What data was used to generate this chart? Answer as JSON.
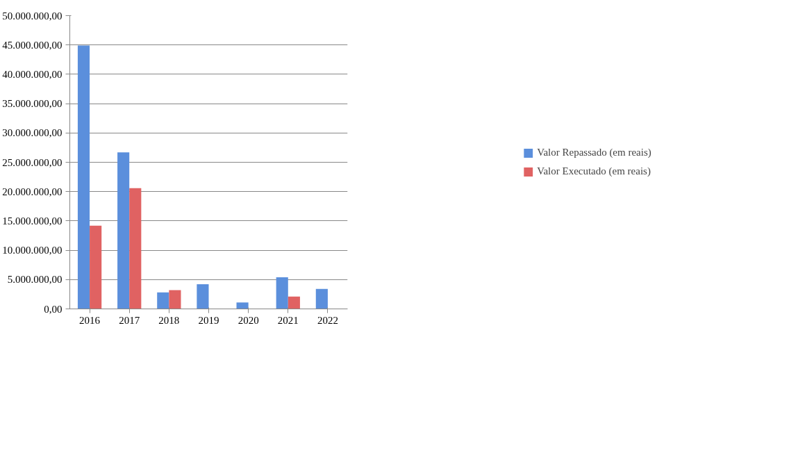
{
  "chart_data": {
    "type": "bar",
    "categories": [
      "2016",
      "2017",
      "2018",
      "2019",
      "2020",
      "2021",
      "2022"
    ],
    "series": [
      {
        "name": "Valor Repassado (em reais)",
        "color": "#5b8fdc",
        "values": [
          44900000,
          26700000,
          2800000,
          4200000,
          1100000,
          5400000,
          3400000
        ]
      },
      {
        "name": "Valor Executado (em reais)",
        "color": "#e06262",
        "values": [
          14200000,
          20600000,
          3200000,
          null,
          null,
          2100000,
          null
        ]
      }
    ],
    "ylim": [
      0,
      50000000
    ],
    "yticks": [
      {
        "value": 0,
        "label": "0,00"
      },
      {
        "value": 5000000,
        "label": "5.000.000,00"
      },
      {
        "value": 10000000,
        "label": "10.000.000,00"
      },
      {
        "value": 15000000,
        "label": "15.000.000,00"
      },
      {
        "value": 20000000,
        "label": "20.000.000,00"
      },
      {
        "value": 25000000,
        "label": "25.000.000,00"
      },
      {
        "value": 30000000,
        "label": "30.000.000,00"
      },
      {
        "value": 35000000,
        "label": "35.000.000,00"
      },
      {
        "value": 40000000,
        "label": "40.000.000,00"
      },
      {
        "value": 45000000,
        "label": "45.000.000,00"
      },
      {
        "value": 50000000,
        "label": "50.000.000,00"
      }
    ],
    "grid": "y",
    "legend": "right"
  }
}
